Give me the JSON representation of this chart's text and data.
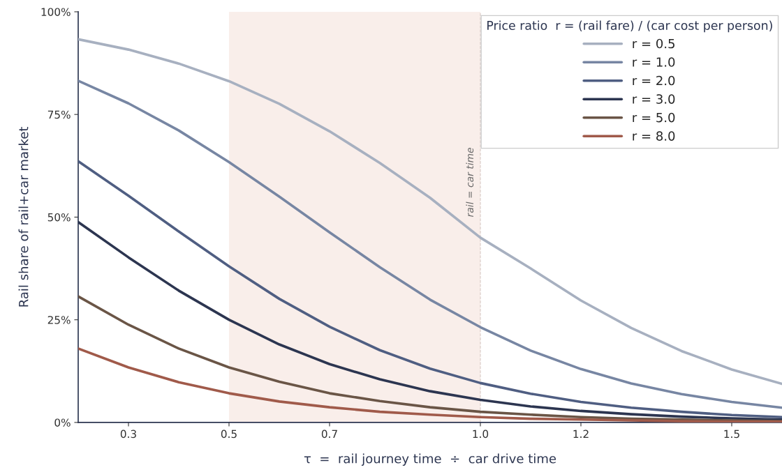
{
  "chart_data": {
    "type": "line",
    "xlabel": "τ  =  rail journey time  ÷  car drive time",
    "ylabel": "Rail share of rail+car market",
    "legend_title": "Price ratio  r = (rail fare) / (car cost per person)",
    "legend": "top right",
    "grid": false,
    "line_style": "solid",
    "marker": "none",
    "x": [
      0.2,
      0.3,
      0.4,
      0.5,
      0.6,
      0.7,
      0.8,
      0.9,
      1.0,
      1.1,
      1.2,
      1.3,
      1.4,
      1.5,
      1.6
    ],
    "xlim": [
      0.2,
      1.6
    ],
    "xticks": [
      {
        "value": 0.3,
        "label": "0.3"
      },
      {
        "value": 0.5,
        "label": "0.5"
      },
      {
        "value": 0.7,
        "label": "0.7"
      },
      {
        "value": 1.0,
        "label": "1.0"
      },
      {
        "value": 1.2,
        "label": "1.2"
      },
      {
        "value": 1.5,
        "label": "1.5"
      }
    ],
    "ylim": [
      0,
      100
    ],
    "yticks": [
      {
        "value": 0,
        "label": "0%"
      },
      {
        "value": 25,
        "label": "25%"
      },
      {
        "value": 50,
        "label": "50%"
      },
      {
        "value": 75,
        "label": "75%"
      },
      {
        "value": 100,
        "label": "100%"
      }
    ],
    "series": [
      {
        "name": "r = 0.5",
        "color": "#a7b0c0",
        "values": [
          93.3,
          90.8,
          87.4,
          83.1,
          77.6,
          70.9,
          63.2,
          54.7,
          45.0,
          37.5,
          29.7,
          23.0,
          17.4,
          12.9,
          9.4
        ]
      },
      {
        "name": "r = 1.0",
        "color": "#7786a3",
        "values": [
          83.2,
          77.7,
          71.1,
          63.4,
          55.0,
          46.3,
          37.8,
          29.9,
          23.2,
          17.5,
          13.0,
          9.5,
          6.9,
          5.0,
          3.6
        ]
      },
      {
        "name": "r = 2.0",
        "color": "#4f5e82",
        "values": [
          63.6,
          55.2,
          46.5,
          38.0,
          30.1,
          23.3,
          17.6,
          13.1,
          9.6,
          7.0,
          5.0,
          3.6,
          2.6,
          1.8,
          1.3
        ]
      },
      {
        "name": "r = 3.0",
        "color": "#2c3550",
        "values": [
          48.8,
          40.2,
          32.1,
          25.0,
          19.0,
          14.2,
          10.5,
          7.6,
          5.5,
          3.9,
          2.8,
          2.0,
          1.4,
          1.0,
          0.7
        ]
      },
      {
        "name": "r = 5.0",
        "color": "#6a5546",
        "values": [
          30.7,
          23.8,
          18.0,
          13.4,
          9.9,
          7.1,
          5.2,
          3.7,
          2.6,
          1.9,
          1.3,
          0.9,
          0.7,
          0.5,
          0.3
        ]
      },
      {
        "name": "r = 8.0",
        "color": "#a05a4a",
        "values": [
          18.0,
          13.4,
          9.8,
          7.1,
          5.1,
          3.7,
          2.6,
          1.9,
          1.3,
          0.9,
          0.7,
          0.5,
          0.3,
          0.2,
          0.2
        ]
      }
    ],
    "bands": [
      {
        "axis": "x",
        "from": 0.5,
        "to": 1.0,
        "color": "#f9eeea"
      }
    ],
    "ref_lines": [
      {
        "axis": "x",
        "value": 1.0,
        "label": "rail = car time",
        "color": "#d8c8c4",
        "line_style": "dashed"
      }
    ]
  }
}
